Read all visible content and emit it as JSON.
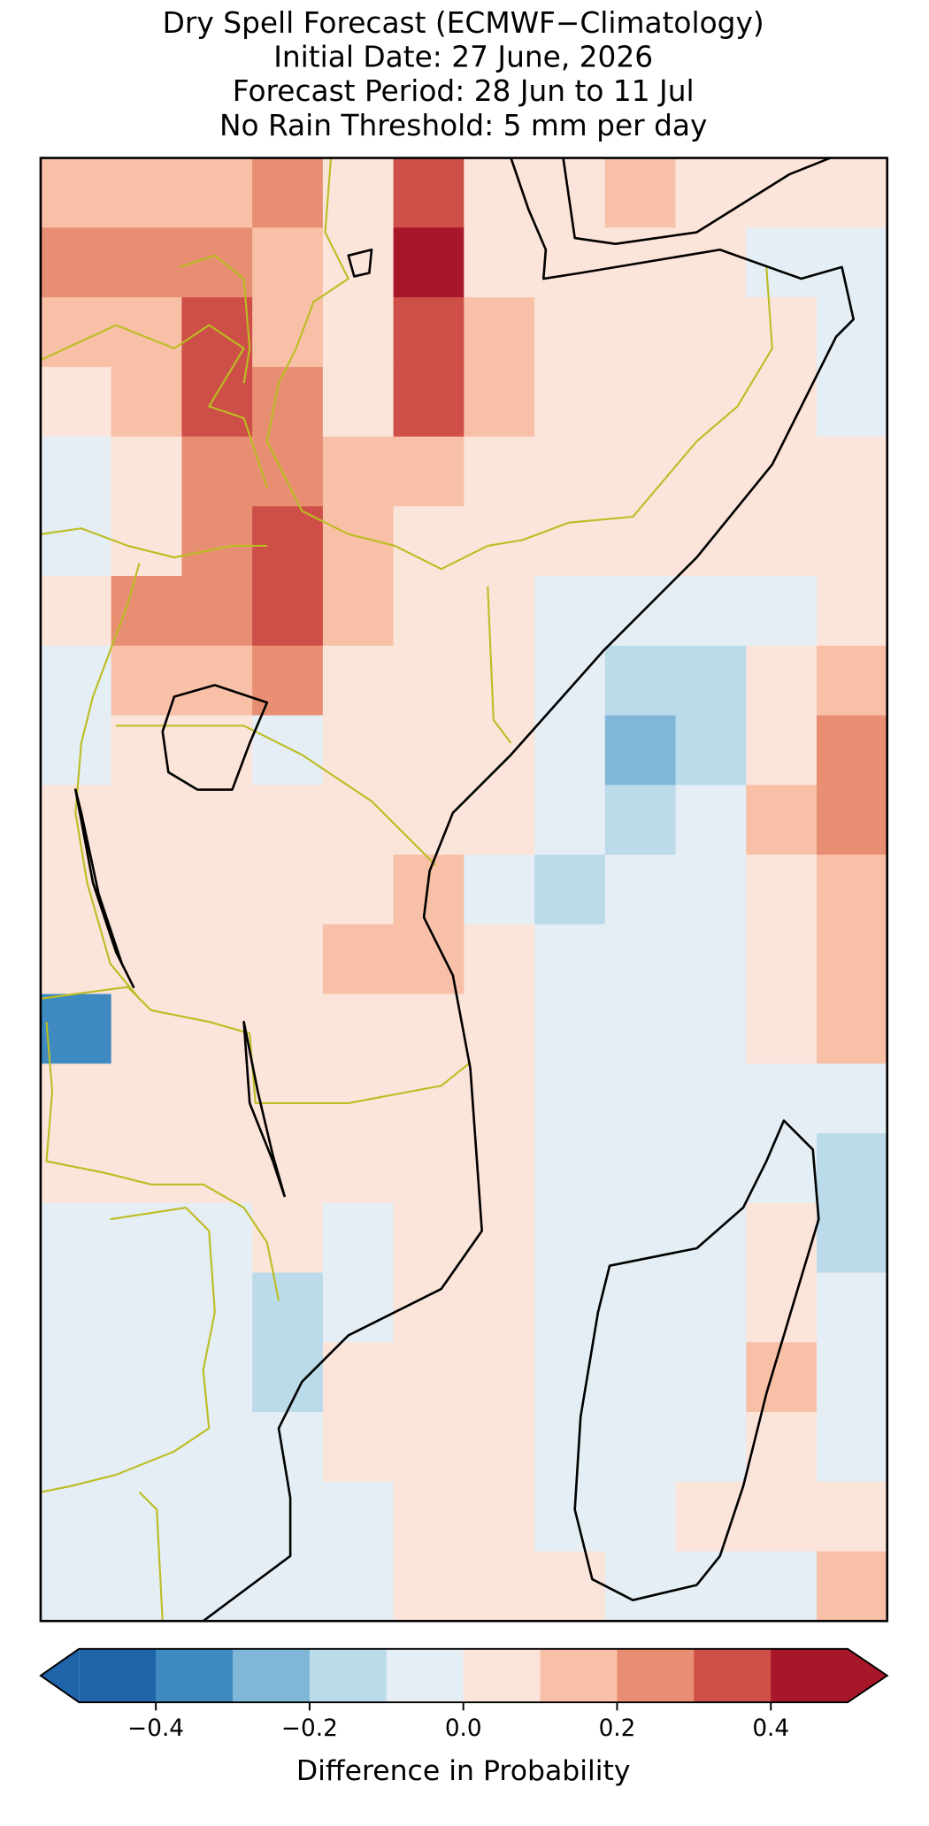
{
  "chart_data": {
    "type": "heatmap",
    "title": [
      "Dry Spell Forecast (ECMWF−Climatology)",
      "Initial Date: 27 June, 2026",
      "Forecast Period: 28 Jun to 11 Jul",
      "No Rain Threshold: 5 mm per day"
    ],
    "values": [
      [
        0.15,
        0.15,
        0.15,
        0.25,
        0.05,
        0.35,
        0.05,
        0.05,
        0.15,
        0.05,
        0.05,
        0.05
      ],
      [
        0.25,
        0.25,
        0.25,
        0.15,
        0.05,
        0.45,
        0.05,
        0.05,
        0.05,
        0.05,
        -0.05,
        -0.05
      ],
      [
        0.15,
        0.15,
        0.35,
        0.15,
        0.05,
        0.35,
        0.15,
        0.05,
        0.05,
        0.05,
        0.05,
        -0.05
      ],
      [
        0.05,
        0.15,
        0.35,
        0.25,
        0.05,
        0.35,
        0.15,
        0.05,
        0.05,
        0.05,
        0.05,
        -0.05
      ],
      [
        -0.05,
        0.05,
        0.25,
        0.25,
        0.15,
        0.15,
        0.05,
        0.05,
        0.05,
        0.05,
        0.05,
        0.05
      ],
      [
        -0.05,
        0.05,
        0.25,
        0.35,
        0.15,
        0.05,
        0.05,
        0.05,
        0.05,
        0.05,
        0.05,
        0.05
      ],
      [
        0.05,
        0.25,
        0.25,
        0.35,
        0.15,
        0.05,
        0.05,
        -0.05,
        -0.05,
        -0.05,
        -0.05,
        0.05
      ],
      [
        -0.05,
        0.15,
        0.15,
        0.25,
        0.05,
        0.05,
        0.05,
        -0.05,
        -0.15,
        -0.15,
        0.05,
        0.15
      ],
      [
        -0.05,
        0.05,
        0.05,
        -0.05,
        0.05,
        0.05,
        0.05,
        -0.05,
        -0.25,
        -0.15,
        0.05,
        0.25
      ],
      [
        0.05,
        0.05,
        0.05,
        0.05,
        0.05,
        0.05,
        0.05,
        -0.05,
        -0.15,
        -0.05,
        0.15,
        0.25
      ],
      [
        0.05,
        0.05,
        0.05,
        0.05,
        0.05,
        0.15,
        -0.05,
        -0.15,
        -0.05,
        -0.05,
        0.05,
        0.15
      ],
      [
        0.05,
        0.05,
        0.05,
        0.05,
        0.15,
        0.15,
        0.05,
        -0.05,
        -0.05,
        -0.05,
        0.05,
        0.15
      ],
      [
        -0.35,
        0.05,
        0.05,
        0.05,
        0.05,
        0.05,
        0.05,
        -0.05,
        -0.05,
        -0.05,
        0.05,
        0.15
      ],
      [
        0.05,
        0.05,
        0.05,
        0.05,
        0.05,
        0.05,
        0.05,
        -0.05,
        -0.05,
        -0.05,
        -0.05,
        -0.05
      ],
      [
        0.05,
        0.05,
        0.05,
        0.05,
        0.05,
        0.05,
        0.05,
        -0.05,
        -0.05,
        -0.05,
        -0.05,
        -0.15
      ],
      [
        -0.05,
        -0.05,
        -0.05,
        0.05,
        -0.05,
        0.05,
        0.05,
        -0.05,
        -0.05,
        -0.05,
        0.05,
        -0.15
      ],
      [
        -0.05,
        -0.05,
        -0.05,
        -0.15,
        -0.05,
        0.05,
        0.05,
        -0.05,
        -0.05,
        -0.05,
        0.05,
        -0.05
      ],
      [
        -0.05,
        -0.05,
        -0.05,
        -0.15,
        0.05,
        0.05,
        0.05,
        -0.05,
        -0.05,
        -0.05,
        0.15,
        -0.05
      ],
      [
        -0.05,
        -0.05,
        -0.05,
        -0.05,
        0.05,
        0.05,
        0.05,
        -0.05,
        -0.05,
        -0.05,
        0.05,
        -0.05
      ],
      [
        -0.05,
        -0.05,
        -0.05,
        -0.05,
        -0.05,
        0.05,
        0.05,
        -0.05,
        -0.05,
        0.05,
        0.05,
        0.05
      ],
      [
        -0.05,
        -0.05,
        -0.05,
        -0.05,
        -0.05,
        0.05,
        0.05,
        0.05,
        -0.05,
        -0.05,
        -0.05,
        0.15
      ]
    ],
    "colorbar": {
      "label": "Difference in Probability",
      "boundaries": [
        -0.5,
        -0.4,
        -0.3,
        -0.2,
        -0.1,
        0.0,
        0.1,
        0.2,
        0.3,
        0.4,
        0.5
      ],
      "colors": [
        "#2064aa",
        "#3f8bc1",
        "#80b7d9",
        "#bbdaea",
        "#e4eef4",
        "#fbe4da",
        "#f8c0a7",
        "#e88f73",
        "#cd4f47",
        "#a8162a"
      ],
      "extend": "both",
      "ticks": [
        {
          "value": -0.4,
          "label": "−0.4"
        },
        {
          "value": -0.2,
          "label": "−0.2"
        },
        {
          "value": 0.0,
          "label": "0.0"
        },
        {
          "value": 0.2,
          "label": "0.2"
        },
        {
          "value": 0.4,
          "label": "0.4"
        }
      ]
    }
  }
}
